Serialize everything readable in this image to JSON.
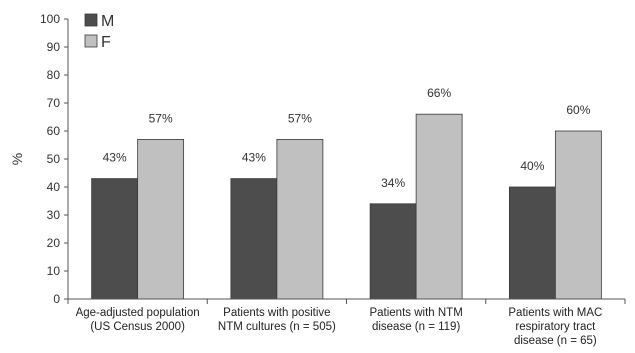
{
  "chart_data": {
    "type": "bar",
    "title": "",
    "xlabel": "",
    "ylabel": "%",
    "ylim": [
      0,
      100
    ],
    "yticks": [
      0,
      10,
      20,
      30,
      40,
      50,
      60,
      70,
      80,
      90,
      100
    ],
    "grid": false,
    "legend_position": "top-left",
    "categories": [
      [
        "Age-adjusted population",
        "(US Census 2000)"
      ],
      [
        "Patients with positive",
        "NTM cultures (n = 505)"
      ],
      [
        "Patients with NTM",
        "disease (n = 119)"
      ],
      [
        "Patients with MAC",
        "respiratory tract",
        "disease (n = 65)"
      ]
    ],
    "series": [
      {
        "name": "M",
        "color": "#4d4d4d",
        "values": [
          43,
          43,
          34,
          40
        ],
        "labels": [
          "43%",
          "43%",
          "34%",
          "40%"
        ]
      },
      {
        "name": "F",
        "color": "#c0c0c0",
        "values": [
          57,
          57,
          66,
          60
        ],
        "labels": [
          "57%",
          "57%",
          "66%",
          "60%"
        ]
      }
    ]
  }
}
